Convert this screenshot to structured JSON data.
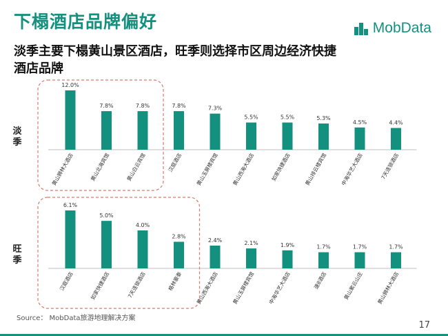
{
  "title": "下榻酒店品牌偏好",
  "logo": {
    "text": "MobData",
    "icon": "mobdata-logo-icon",
    "color": "#14907f"
  },
  "subtitle_line1": "淡季主要下榻黄山景区酒店，旺季则选择市区周边经济快捷",
  "subtitle_line2": "酒店品牌",
  "source": "Source： MobData旅游地理解决方案",
  "page_number": "17",
  "colors": {
    "bar": "#14907f",
    "highlight_border": "#d77a6b",
    "axis": "#bfbfbf"
  },
  "chart_data": [
    {
      "type": "bar",
      "row_label": "淡季",
      "categories": [
        "黄山狮林大酒店",
        "黄山北海宾馆",
        "黄山白云宾馆",
        "汉庭酒店",
        "黄山玉屏楼宾馆",
        "黄山西海大酒店",
        "如家快捷酒店",
        "黄山排云楼宾馆",
        "中海华艺大酒店",
        "7天连锁酒店"
      ],
      "values": [
        12.0,
        7.8,
        7.8,
        7.8,
        7.3,
        5.5,
        5.5,
        5.3,
        4.5,
        4.4
      ],
      "value_labels": [
        "12.0%",
        "7.8%",
        "7.8%",
        "7.8%",
        "7.3%",
        "5.5%",
        "5.5%",
        "5.3%",
        "4.5%",
        "4.4%"
      ],
      "highlighted_count": 3
    },
    {
      "type": "bar",
      "row_label": "旺季",
      "categories": [
        "汉庭酒店",
        "如家快捷酒店",
        "7天连锁酒店",
        "格林豪泰",
        "黄山西海大酒店",
        "黄山玉屏楼宾馆",
        "中海华艺大酒店",
        "速8酒店",
        "黄山紫云山庄",
        "黄山狮林大酒店"
      ],
      "values": [
        6.1,
        5.0,
        4.0,
        2.8,
        2.4,
        2.1,
        1.9,
        1.7,
        1.7,
        1.7
      ],
      "value_labels": [
        "6.1%",
        "5.0%",
        "4.0%",
        "2.8%",
        "2.4%",
        "2.1%",
        "1.9%",
        "1.7%",
        "1.7%",
        "1.7%"
      ],
      "highlighted_count": 4
    }
  ]
}
